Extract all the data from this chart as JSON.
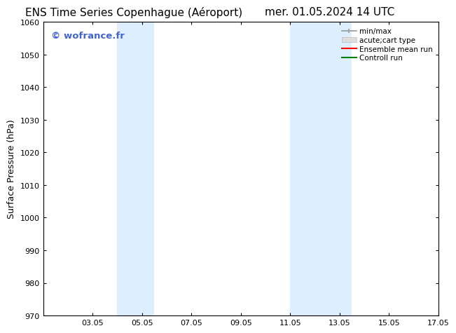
{
  "title_left": "ENS Time Series Copenhague (Aéroport)",
  "title_right": "mer. 01.05.2024 14 UTC",
  "ylabel": "Surface Pressure (hPa)",
  "ylim": [
    970,
    1060
  ],
  "yticks": [
    970,
    980,
    990,
    1000,
    1010,
    1020,
    1030,
    1040,
    1050,
    1060
  ],
  "xlim": [
    0,
    16
  ],
  "xtick_labels": [
    "03.05",
    "05.05",
    "07.05",
    "09.05",
    "11.05",
    "13.05",
    "15.05",
    "17.05"
  ],
  "xtick_positions": [
    2,
    4,
    6,
    8,
    10,
    12,
    14,
    16
  ],
  "shaded_bands": [
    {
      "x_start": 3.0,
      "x_end": 4.5
    },
    {
      "x_start": 10.0,
      "x_end": 11.0
    },
    {
      "x_start": 11.0,
      "x_end": 12.5
    }
  ],
  "shaded_color": "#ddeeff",
  "watermark_text": "© wofrance.fr",
  "watermark_color": "#4466cc",
  "legend_entries": [
    {
      "label": "min/max",
      "color": "#aaaaaa",
      "lw": 1.5
    },
    {
      "label": "acute;cart type",
      "color": "#cccccc",
      "lw": 8
    },
    {
      "label": "Ensemble mean run",
      "color": "#ff0000",
      "lw": 1.5
    },
    {
      "label": "Controll run",
      "color": "#008000",
      "lw": 1.5
    }
  ],
  "background_color": "#ffffff",
  "title_fontsize": 11,
  "axis_fontsize": 9,
  "tick_fontsize": 8
}
